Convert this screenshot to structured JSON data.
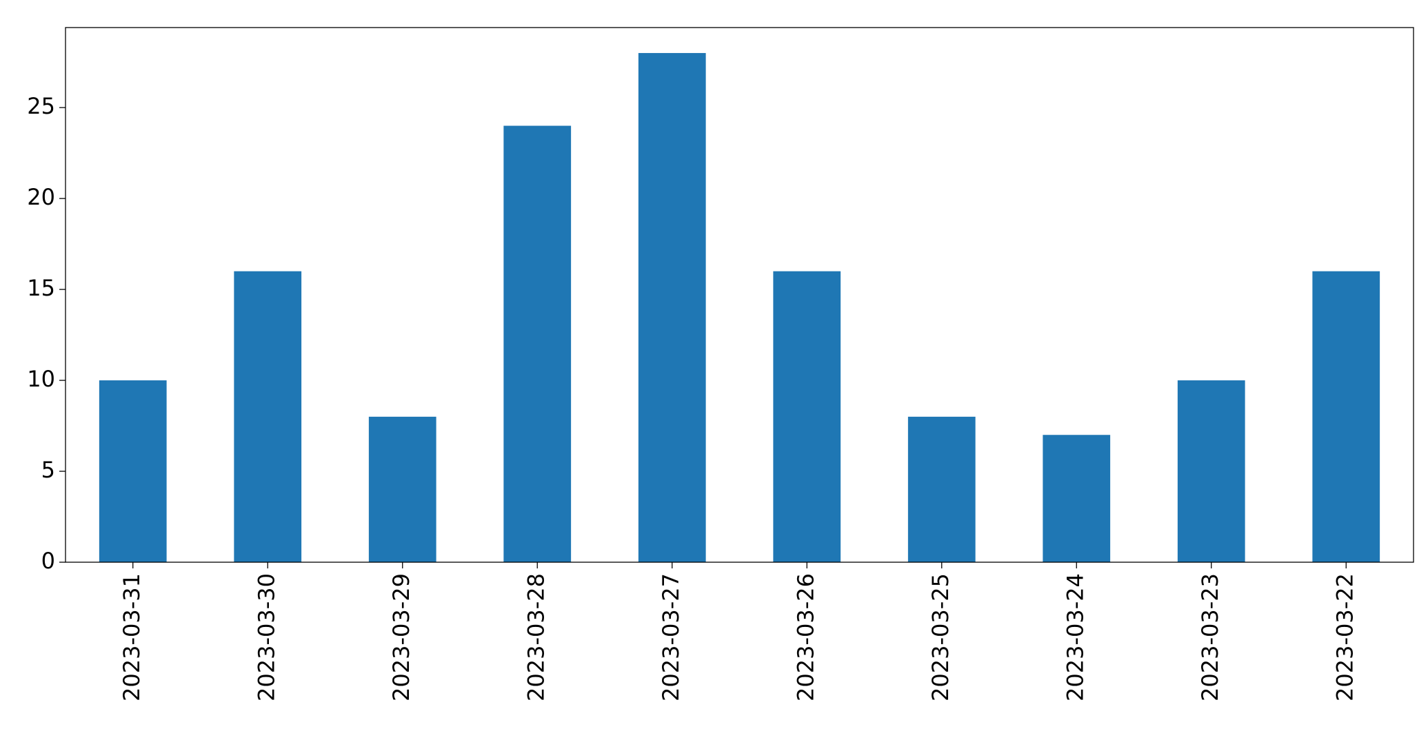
{
  "chart_data": {
    "type": "bar",
    "categories": [
      "2023-03-31",
      "2023-03-30",
      "2023-03-29",
      "2023-03-28",
      "2023-03-27",
      "2023-03-26",
      "2023-03-25",
      "2023-03-24",
      "2023-03-23",
      "2023-03-22"
    ],
    "values": [
      10,
      16,
      8,
      24,
      28,
      16,
      8,
      7,
      10,
      16
    ],
    "color": "#1f77b4",
    "ylim": [
      0,
      29.4
    ],
    "yticks": [
      0,
      5,
      10,
      15,
      20,
      25
    ],
    "grid": false
  }
}
